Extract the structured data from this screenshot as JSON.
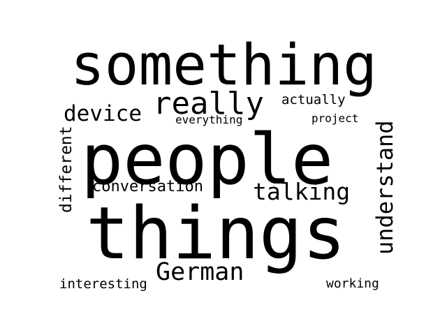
{
  "word_cloud": {
    "text_color": "#000000",
    "background_color": "#ffffff",
    "words": [
      {
        "text": "something"
      },
      {
        "text": "really"
      },
      {
        "text": "actually"
      },
      {
        "text": "device"
      },
      {
        "text": "everything"
      },
      {
        "text": "project"
      },
      {
        "text": "people"
      },
      {
        "text": "different"
      },
      {
        "text": "understand"
      },
      {
        "text": "conversation"
      },
      {
        "text": "talking"
      },
      {
        "text": "things"
      },
      {
        "text": "German"
      },
      {
        "text": "interesting"
      },
      {
        "text": "working"
      }
    ]
  }
}
